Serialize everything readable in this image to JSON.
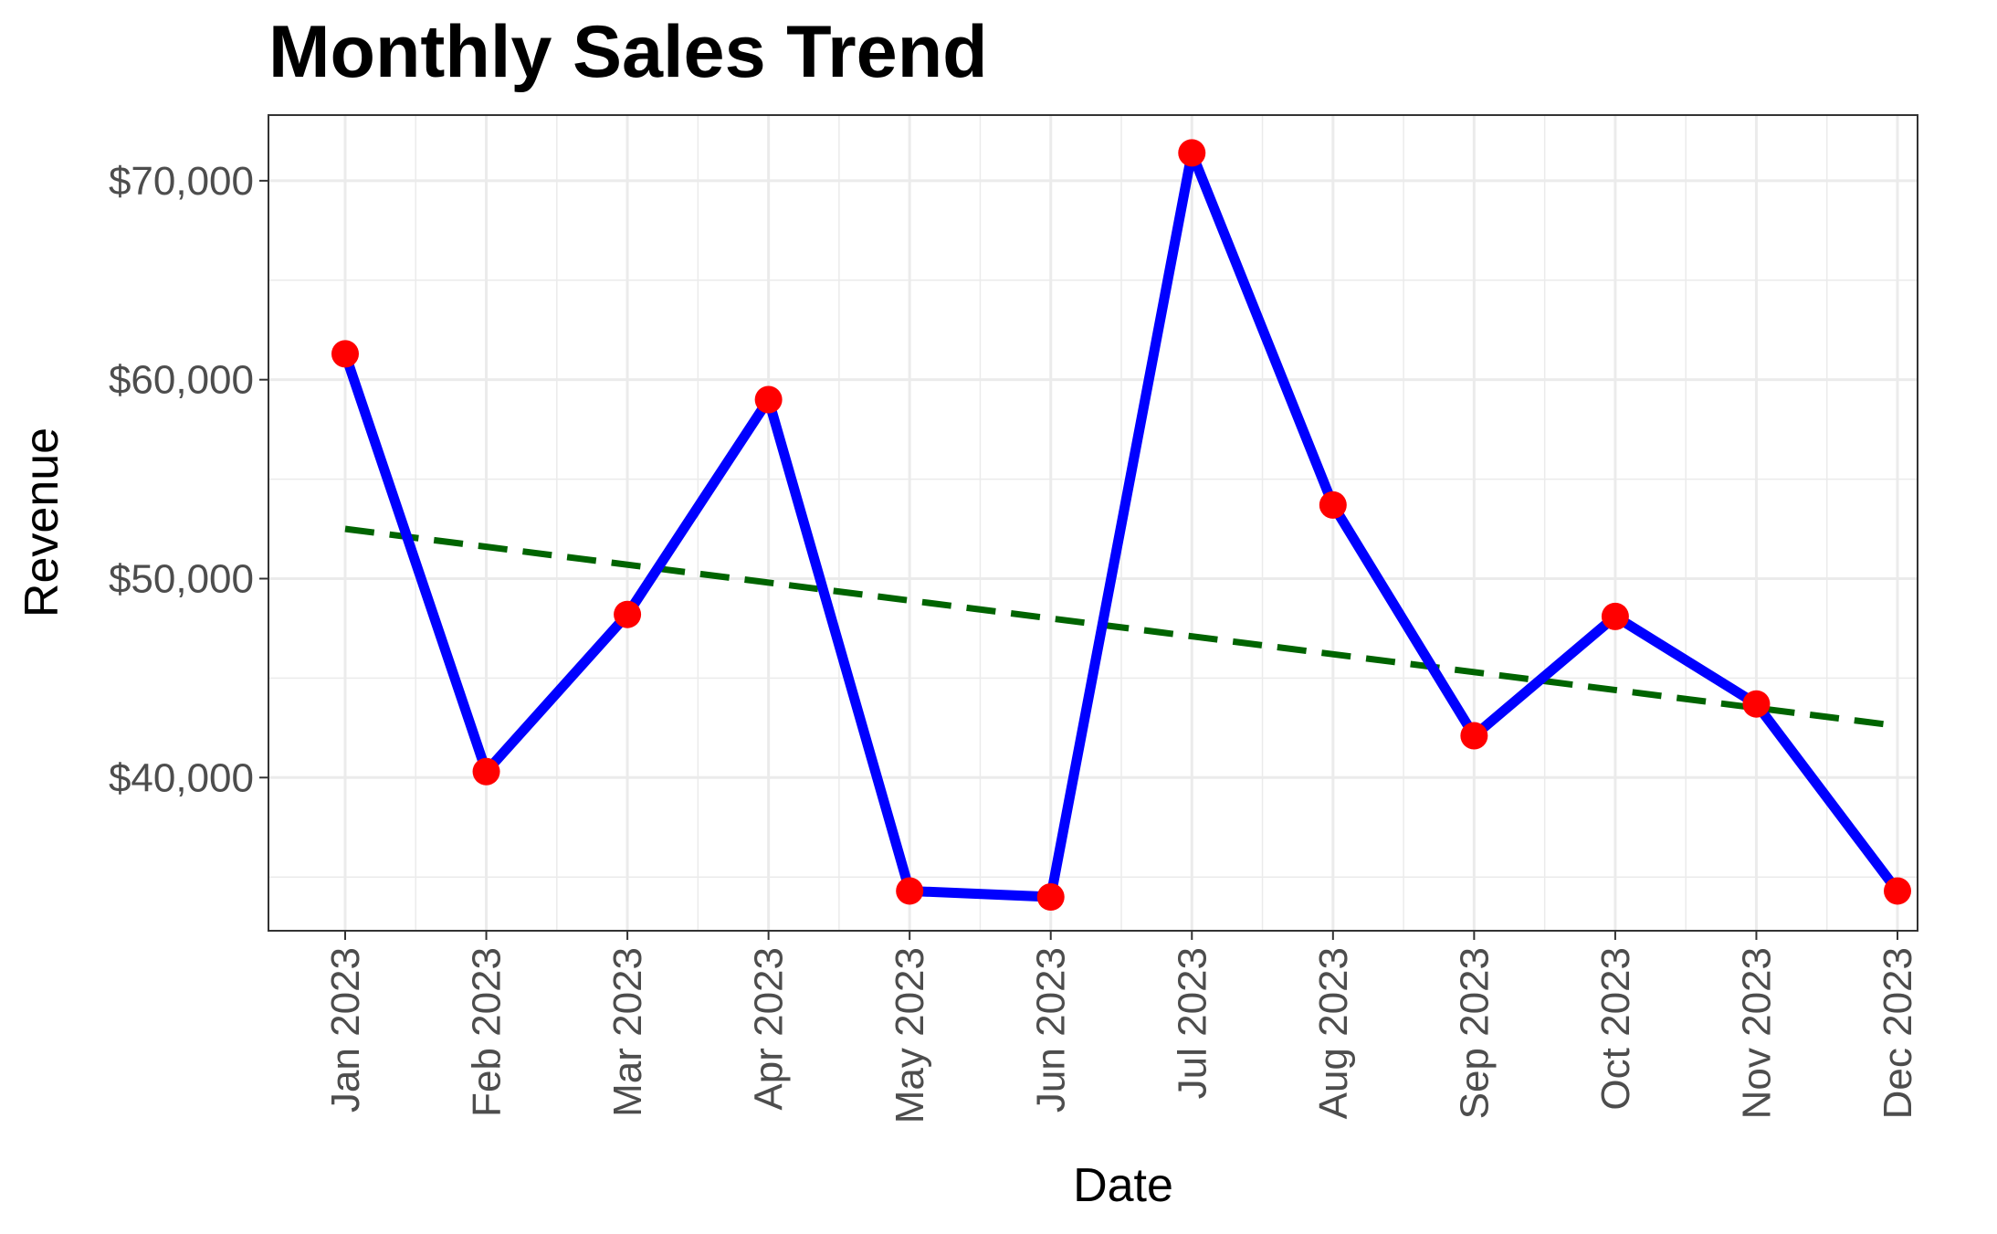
{
  "chart_data": {
    "type": "line",
    "title": "Monthly Sales Trend",
    "xlabel": "Date",
    "ylabel": "Revenue",
    "x": [
      "Jan 2023",
      "Feb 2023",
      "Mar 2023",
      "Apr 2023",
      "May 2023",
      "Jun 2023",
      "Jul 2023",
      "Aug 2023",
      "Sep 2023",
      "Oct 2023",
      "Nov 2023",
      "Dec 2023"
    ],
    "x_dates": [
      "2023-01-01",
      "2023-02-01",
      "2023-03-01",
      "2023-04-01",
      "2023-05-01",
      "2023-06-01",
      "2023-07-01",
      "2023-08-01",
      "2023-09-01",
      "2023-10-01",
      "2023-11-01",
      "2023-12-01"
    ],
    "series": [
      {
        "values": [
          61300,
          40300,
          48200,
          59000,
          34300,
          34000,
          71400,
          53700,
          42100,
          48100,
          43700,
          34300
        ]
      }
    ],
    "trend": {
      "start": 52500,
      "end": 42600,
      "style": "dashed"
    },
    "y_ticks": [
      40000,
      50000,
      60000,
      70000
    ],
    "y_tick_labels": [
      "$40,000",
      "$50,000",
      "$60,000",
      "$70,000"
    ],
    "ylim": [
      32300,
      73300
    ],
    "grid": true,
    "colors": {
      "line": "#0000ff",
      "points": "#ff0000",
      "trend": "#006400",
      "grid": "#ebebeb",
      "panel_border": "#333333"
    }
  }
}
